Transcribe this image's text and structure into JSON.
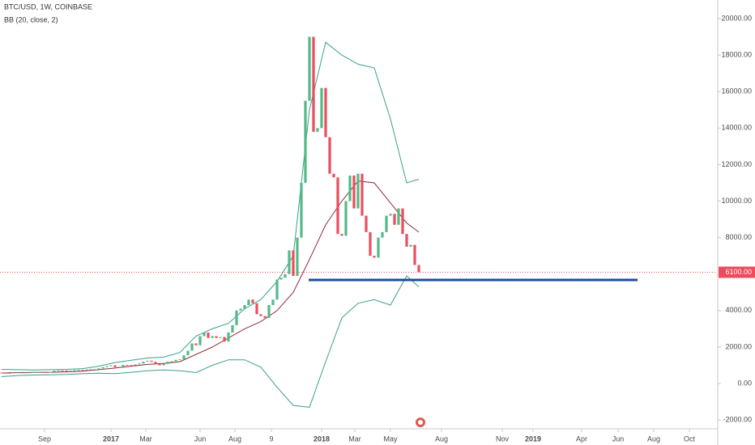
{
  "chart_data": {
    "type": "candlestick",
    "title": "BTC/USD, 1W, COINBASE",
    "indicator": "BB (20, close, 2)",
    "up_color": "#53b987",
    "down_color": "#eb4d5c",
    "x": [
      -27,
      -26,
      -25,
      -24,
      -23,
      -22,
      -21,
      -20,
      -19,
      -18,
      -17,
      -16,
      -15,
      -14,
      -13,
      -12,
      -11,
      -10,
      -9,
      -8,
      -7,
      -6,
      -5,
      -4,
      -3,
      -2,
      -1,
      0,
      1,
      2,
      3,
      4,
      5,
      6,
      7,
      8,
      9,
      10,
      11,
      12,
      13,
      14,
      15,
      16,
      17,
      18,
      19,
      20,
      21,
      22,
      23,
      24,
      25,
      26,
      27,
      28,
      29,
      30,
      31,
      32,
      33,
      34,
      35,
      36,
      37,
      38,
      39,
      40,
      41,
      42,
      43,
      44,
      45,
      46,
      47,
      48,
      49,
      50,
      51,
      52,
      53,
      54,
      55,
      56,
      57,
      58,
      59,
      60,
      61,
      62,
      63,
      64,
      65,
      66,
      67,
      68,
      69,
      70,
      71,
      72,
      73,
      74,
      75,
      76
    ],
    "open": [
      600,
      590,
      575,
      580,
      600,
      610,
      605,
      610,
      615,
      640,
      640,
      630,
      610,
      640,
      700,
      720,
      710,
      700,
      705,
      740,
      750,
      740,
      770,
      780,
      790,
      830,
      900,
      960,
      1000,
      900,
      920,
      1020,
      1010,
      1000,
      1050,
      1100,
      1200,
      1250,
      1190,
      1080,
      1000,
      1080,
      1200,
      1220,
      1300,
      1330,
      1550,
      1800,
      2200,
      2100,
      2600,
      2800,
      2500,
      2600,
      2500,
      2550,
      2300,
      2800,
      3200,
      4000,
      4100,
      4300,
      4600,
      4400,
      3800,
      3700,
      3600,
      4300,
      4600,
      5700,
      5800,
      6000,
      7300,
      5900,
      8000,
      11000,
      15500,
      19000,
      13800,
      14000,
      16200,
      13500,
      11500,
      11300,
      8200,
      8100,
      10000,
      11400,
      9600,
      11500,
      9200,
      8300,
      7000,
      6900,
      8000,
      8300,
      9200,
      9300,
      8700,
      9600,
      8200,
      7500,
      7600,
      6500
    ],
    "close": [
      590,
      575,
      580,
      600,
      610,
      605,
      610,
      615,
      640,
      640,
      630,
      610,
      640,
      700,
      720,
      710,
      700,
      705,
      740,
      750,
      740,
      770,
      780,
      790,
      830,
      900,
      960,
      1000,
      900,
      920,
      1020,
      1010,
      1000,
      1050,
      1100,
      1200,
      1250,
      1190,
      1080,
      1000,
      1080,
      1200,
      1220,
      1300,
      1330,
      1550,
      1800,
      2200,
      2100,
      2600,
      2800,
      2500,
      2600,
      2500,
      2550,
      2300,
      2800,
      3200,
      4000,
      4100,
      4300,
      4600,
      4400,
      3800,
      3700,
      3600,
      4300,
      4600,
      5700,
      5800,
      6000,
      7300,
      5900,
      8000,
      11000,
      15500,
      19000,
      13800,
      14000,
      16200,
      13500,
      11500,
      11300,
      8200,
      8100,
      10000,
      11400,
      9600,
      11500,
      9200,
      8300,
      7000,
      6900,
      8000,
      8300,
      9200,
      9300,
      8700,
      9600,
      8200,
      7500,
      7600,
      6500,
      6100
    ],
    "bands": {
      "x": [
        -27,
        -23,
        -19,
        -15,
        -11,
        -7,
        -3,
        1,
        5,
        9,
        13,
        17,
        21,
        25,
        29,
        33,
        37,
        41,
        45,
        49,
        53,
        57,
        61,
        65,
        69,
        73,
        76
      ],
      "upper": {
        "color": "#3a9e8e",
        "values": [
          780,
          760,
          750,
          760,
          780,
          820,
          950,
          1150,
          1280,
          1400,
          1450,
          1700,
          2600,
          3000,
          3300,
          4100,
          4600,
          5600,
          7000,
          15000,
          18700,
          18000,
          17500,
          17300,
          14500,
          11000,
          11200
        ]
      },
      "middle": {
        "color": "#8b2d3c",
        "values": [
          580,
          600,
          610,
          620,
          640,
          680,
          760,
          850,
          950,
          1050,
          1100,
          1200,
          1600,
          2000,
          2500,
          3000,
          3400,
          4000,
          5000,
          6800,
          8700,
          10000,
          11100,
          11000,
          9900,
          8800,
          8300
        ]
      },
      "lower": {
        "color": "#3a9e8e",
        "values": [
          380,
          440,
          470,
          480,
          500,
          540,
          570,
          550,
          620,
          700,
          750,
          700,
          600,
          1000,
          1300,
          1300,
          900,
          -200,
          -1200,
          -1300,
          1200,
          3600,
          4400,
          4600,
          4300,
          5900,
          5300
        ]
      }
    },
    "trendline": {
      "value": 5680,
      "x": [
        48.8,
        130
      ],
      "color": "#1c4f9c"
    },
    "last_price": {
      "value": 6100,
      "label": "6100.00",
      "color": "#eb4d5c"
    },
    "xlim": [
      -27.4,
      149.6
    ],
    "xticks": [
      {
        "value": -16.4,
        "label": "Sep"
      },
      {
        "value": 0,
        "label": "2017"
      },
      {
        "value": 8.6,
        "label": "Mar"
      },
      {
        "value": 22,
        "label": "Jun"
      },
      {
        "value": 30.6,
        "label": "Aug"
      },
      {
        "value": 39.6,
        "label": "9"
      },
      {
        "value": 52,
        "label": "2018"
      },
      {
        "value": 60.2,
        "label": "Mar"
      },
      {
        "value": 69,
        "label": "May"
      },
      {
        "value": 81.6,
        "label": "Aug"
      },
      {
        "value": 96.6,
        "label": "Nov"
      },
      {
        "value": 104.2,
        "label": "2019"
      },
      {
        "value": 116.2,
        "label": "Apr"
      },
      {
        "value": 125.2,
        "label": "Jun"
      },
      {
        "value": 134,
        "label": "Aug"
      },
      {
        "value": 142.8,
        "label": "Oct"
      }
    ],
    "ylim": [
      -2480,
      21020
    ],
    "yticks": [
      {
        "value": 20000,
        "label": "20000.00"
      },
      {
        "value": 18000,
        "label": "18000.00"
      },
      {
        "value": 16000,
        "label": "16000.00"
      },
      {
        "value": 14000,
        "label": "14000.00"
      },
      {
        "value": 12000,
        "label": "12000.00"
      },
      {
        "value": 10000,
        "label": "10000.00"
      },
      {
        "value": 8000,
        "label": "8000.00"
      },
      {
        "value": 6000,
        "label": "6000.00"
      },
      {
        "value": 4000,
        "label": "4000.00"
      },
      {
        "value": 2000,
        "label": "2000.00"
      },
      {
        "value": 0,
        "label": "0.00"
      },
      {
        "value": -2000,
        "label": "-2000.00"
      }
    ],
    "grid": false
  }
}
